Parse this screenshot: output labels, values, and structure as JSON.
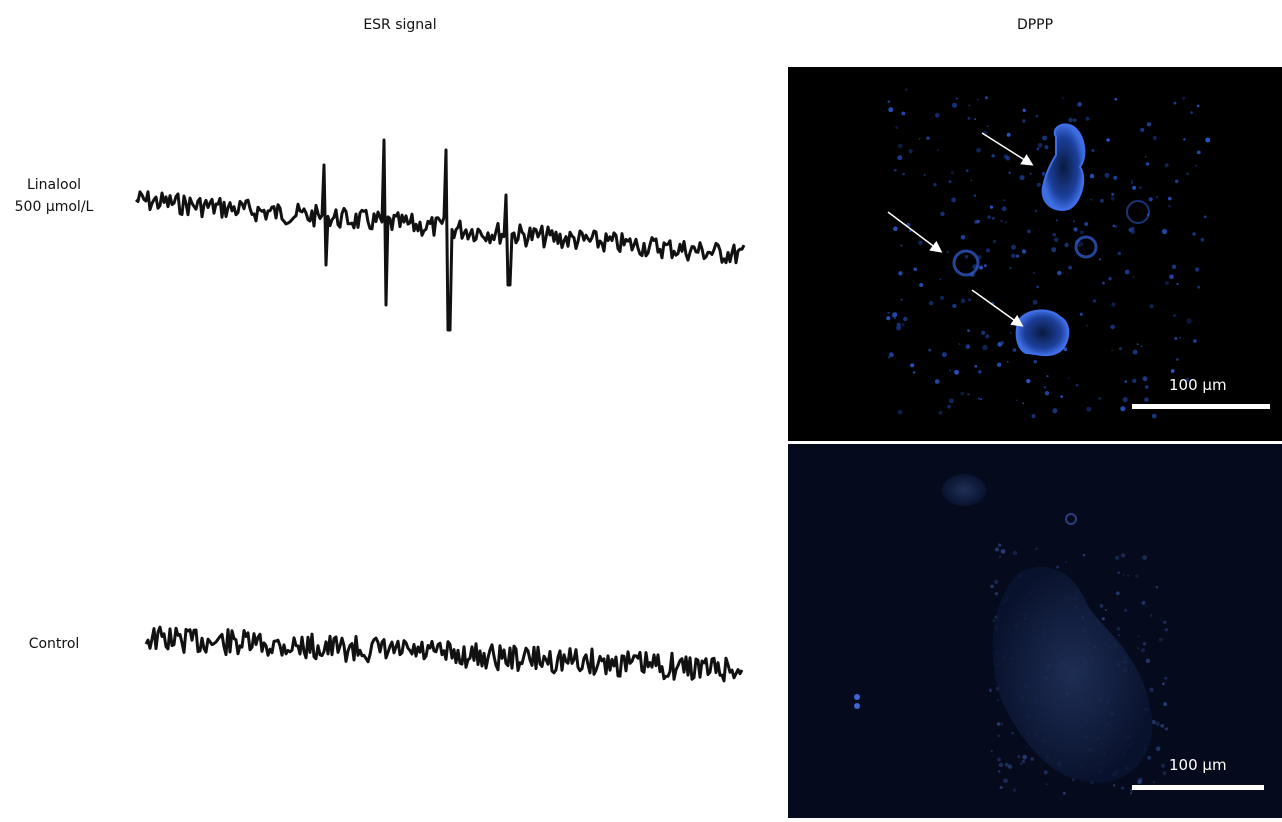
{
  "header": {
    "esr_title": "ESR signal",
    "dppp_title": "DPPP"
  },
  "rows": [
    {
      "label_line1": "Linalool",
      "label_line2": "500 μmol/L"
    },
    {
      "label_line1": "Control"
    }
  ],
  "images": [
    {
      "scale_label": "100 μm"
    },
    {
      "scale_label": "100 μm"
    }
  ]
}
